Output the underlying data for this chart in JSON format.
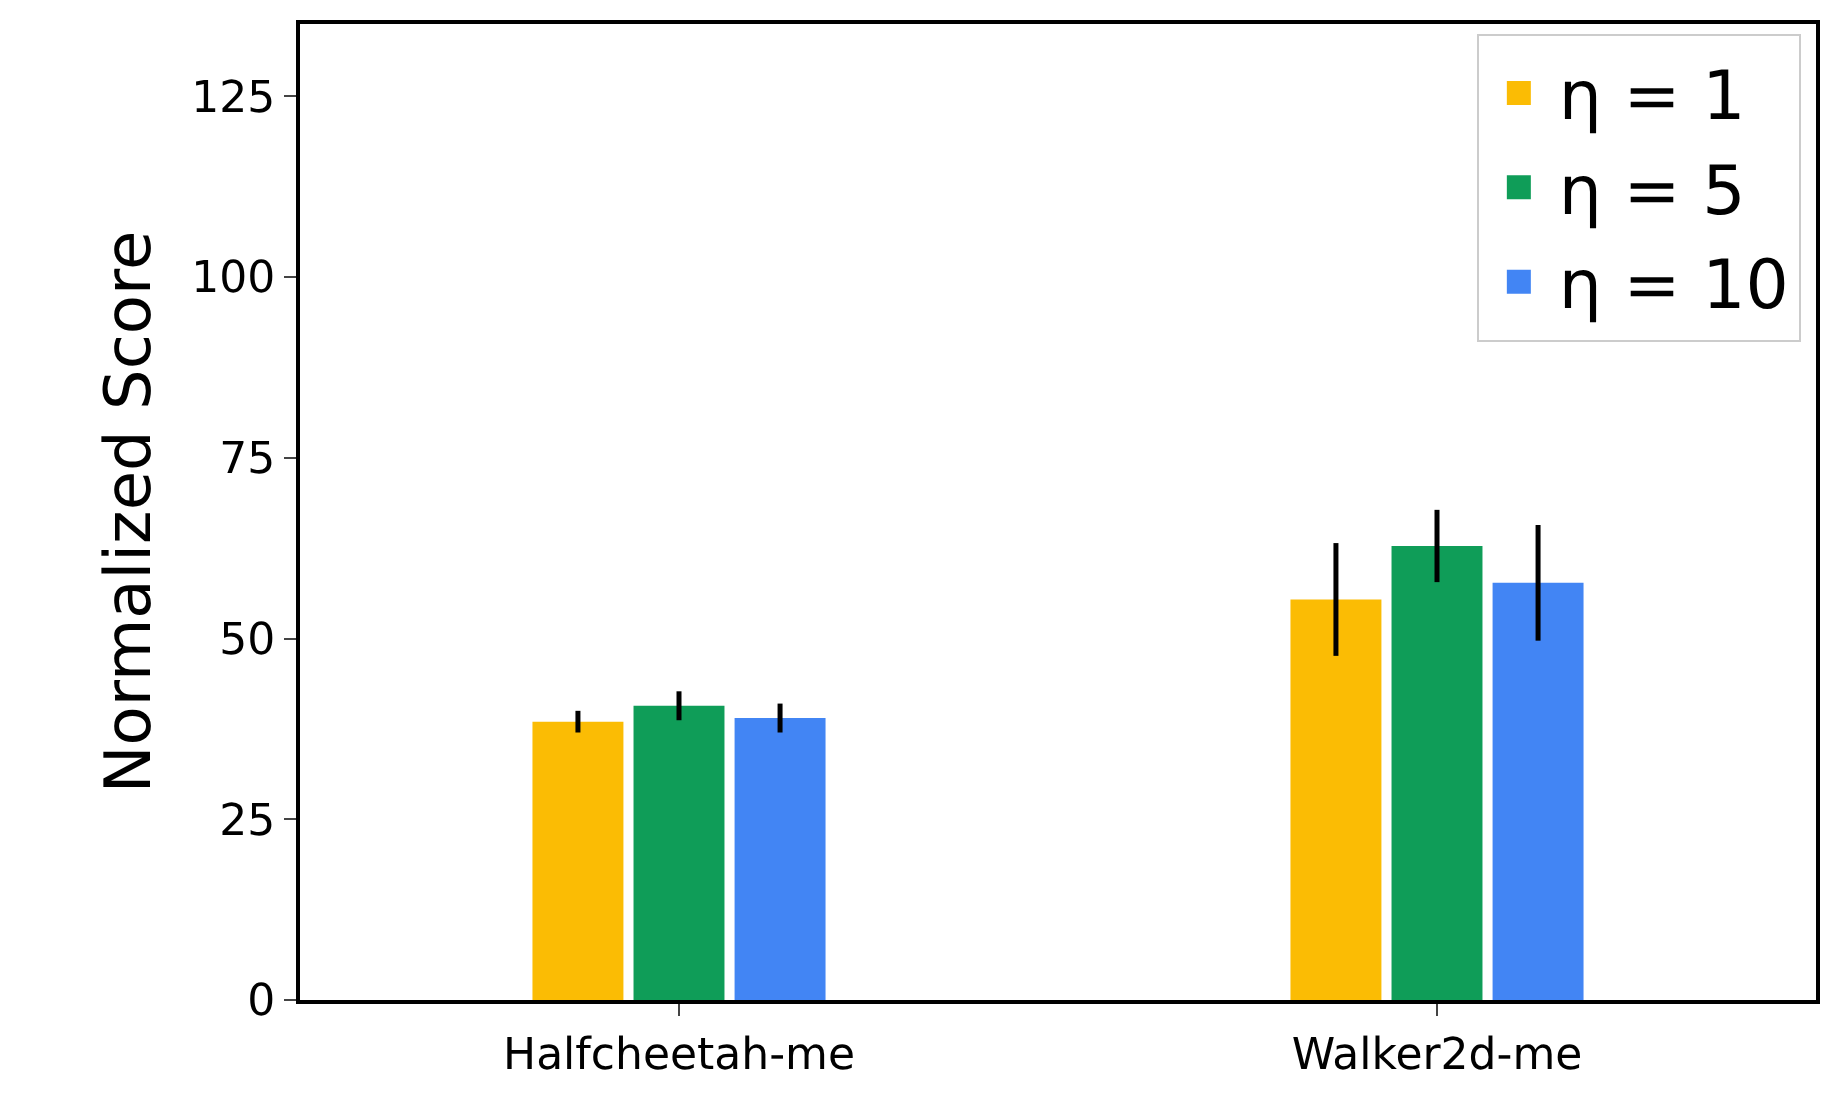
{
  "chart_data": {
    "type": "bar",
    "ylabel": "Normalized Score",
    "categories": [
      "Halfcheetah-me",
      "Walker2d-me"
    ],
    "series": [
      {
        "name": "η = 1",
        "color": "#fbbc04",
        "values": [
          38.5,
          55.4
        ],
        "errors": [
          1.5,
          7.8
        ]
      },
      {
        "name": "η = 5",
        "color": "#0f9d58",
        "values": [
          40.7,
          62.8
        ],
        "errors": [
          2,
          5
        ]
      },
      {
        "name": "η = 10",
        "color": "#4285f4",
        "values": [
          39.0,
          57.7
        ],
        "errors": [
          2,
          8
        ]
      }
    ],
    "ylim": [
      0,
      135
    ],
    "yticks": [
      0,
      25,
      50,
      75,
      100,
      125
    ],
    "grid": false,
    "legend": "top right"
  }
}
